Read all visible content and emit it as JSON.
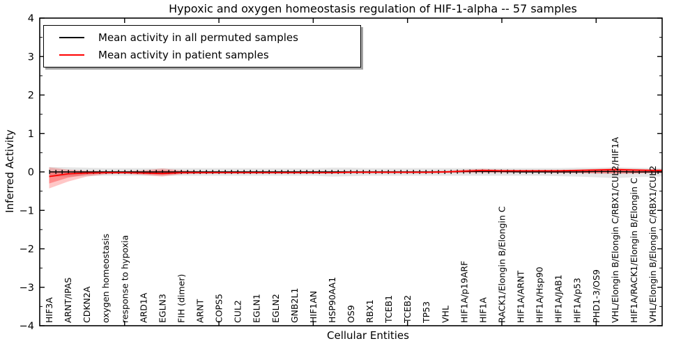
{
  "chart_data": {
    "type": "line",
    "title": "Hypoxic and oxygen homeostasis regulation of HIF-1-alpha -- 57 samples",
    "xlabel": "Cellular Entities",
    "ylabel": "Inferred Activity",
    "ylim": [
      -4,
      4
    ],
    "yticks": [
      -4,
      -3,
      -2,
      -1,
      0,
      1,
      2,
      3,
      4
    ],
    "y_minor_step": 0.5,
    "x_major_tick_first_index": 4,
    "x_major_tick_step": 5,
    "grid": false,
    "legend_position": "upper-left",
    "categories": [
      "HIF3A",
      "ARNT/IPAS",
      "CDKN2A",
      "oxygen homeostasis",
      "response to hypoxia",
      "ARD1A",
      "EGLN3",
      "FIH (dimer)",
      "ARNT",
      "COPS5",
      "CUL2",
      "EGLN1",
      "EGLN2",
      "GNB2L1",
      "HIF1AN",
      "HSP90AA1",
      "OS9",
      "RBX1",
      "TCEB1",
      "TCEB2",
      "TP53",
      "VHL",
      "HIF1A/p19ARF",
      "HIF1A",
      "RACK1/Elongin B/Elongin C",
      "HIF1A/ARNT",
      "HIF1A/Hsp90",
      "HIF1A/JAB1",
      "HIF1A/p53",
      "PHD1-3/OS9",
      "VHL/Elongin B/Elongin C/RBX1/CUL2/HIF1A",
      "HIF1A/RACK1/Elongin B/Elongin C",
      "VHL/Elongin B/Elongin C/RBX1/CUL2"
    ],
    "series": [
      {
        "name": "Mean activity in all permuted samples",
        "color": "#000000",
        "marker": "tick",
        "values": [
          0,
          0,
          0,
          0,
          0,
          0,
          0,
          0,
          0,
          0,
          0,
          0,
          0,
          0,
          0,
          0,
          0,
          0,
          0,
          0,
          0,
          0,
          0.01,
          0.01,
          0.01,
          0,
          0,
          0,
          0,
          0.01,
          0.01,
          0,
          0
        ]
      },
      {
        "name": "Mean activity in patient samples",
        "color": "#ff0000",
        "marker": "none",
        "values": [
          -0.12,
          -0.05,
          -0.03,
          -0.02,
          -0.02,
          -0.03,
          -0.04,
          -0.02,
          -0.02,
          -0.02,
          -0.02,
          -0.02,
          -0.02,
          -0.02,
          -0.02,
          -0.02,
          -0.01,
          -0.01,
          -0.01,
          -0.01,
          -0.01,
          0,
          0.02,
          0.04,
          0.03,
          0.03,
          0.03,
          0.03,
          0.04,
          0.05,
          0.06,
          0.05,
          0.04
        ]
      }
    ],
    "bands": [
      {
        "name": "permuted-samples-range",
        "color": "rgba(0,0,0,0.10)",
        "upper": [
          0.13,
          0.12,
          0.11,
          0.1,
          0.1,
          0.1,
          0.1,
          0.1,
          0.1,
          0.1,
          0.1,
          0.1,
          0.1,
          0.1,
          0.1,
          0.11,
          0.11,
          0.1,
          0.1,
          0.1,
          0.1,
          0.1,
          0.1,
          0.1,
          0.1,
          0.1,
          0.1,
          0.1,
          0.11,
          0.11,
          0.12,
          0.11,
          0.1
        ],
        "lower": [
          -0.13,
          -0.12,
          -0.11,
          -0.1,
          -0.1,
          -0.1,
          -0.1,
          -0.1,
          -0.1,
          -0.1,
          -0.1,
          -0.1,
          -0.1,
          -0.1,
          -0.1,
          -0.12,
          -0.11,
          -0.1,
          -0.1,
          -0.1,
          -0.1,
          -0.1,
          -0.1,
          -0.1,
          -0.1,
          -0.1,
          -0.1,
          -0.11,
          -0.12,
          -0.14,
          -0.16,
          -0.14,
          -0.12
        ]
      },
      {
        "name": "patient-samples-range-outer",
        "color": "rgba(255,0,0,0.22)",
        "upper": [
          0.12,
          0.06,
          0.03,
          0.02,
          0.02,
          0.04,
          0.09,
          0.04,
          0.02,
          0.02,
          0.02,
          0.02,
          0.02,
          0.02,
          0.02,
          0.02,
          0.02,
          0.02,
          0.02,
          0.02,
          0.02,
          0.03,
          0.06,
          0.08,
          0.06,
          0.05,
          0.05,
          0.05,
          0.06,
          0.08,
          0.1,
          0.08,
          0.07
        ],
        "lower": [
          -0.43,
          -0.25,
          -0.12,
          -0.06,
          -0.05,
          -0.08,
          -0.12,
          -0.06,
          -0.05,
          -0.04,
          -0.04,
          -0.04,
          -0.04,
          -0.04,
          -0.04,
          -0.04,
          -0.03,
          -0.03,
          -0.03,
          -0.03,
          -0.03,
          -0.03,
          -0.02,
          -0.02,
          -0.02,
          -0.02,
          -0.02,
          -0.03,
          -0.03,
          -0.04,
          -0.05,
          -0.04,
          -0.03
        ]
      },
      {
        "name": "patient-samples-range-inner",
        "color": "rgba(255,0,0,0.30)",
        "upper": [
          0.02,
          0.01,
          0.01,
          0.0,
          0.0,
          0.01,
          0.04,
          0.01,
          0.01,
          0.01,
          0.01,
          0.01,
          0.01,
          0.01,
          0.01,
          0.01,
          0.01,
          0.01,
          0.01,
          0.01,
          0.01,
          0.01,
          0.03,
          0.05,
          0.04,
          0.03,
          0.03,
          0.03,
          0.04,
          0.05,
          0.07,
          0.05,
          0.04
        ],
        "lower": [
          -0.3,
          -0.15,
          -0.07,
          -0.04,
          -0.03,
          -0.05,
          -0.08,
          -0.04,
          -0.03,
          -0.03,
          -0.03,
          -0.03,
          -0.03,
          -0.03,
          -0.03,
          -0.03,
          -0.02,
          -0.02,
          -0.02,
          -0.02,
          -0.02,
          -0.02,
          -0.01,
          -0.01,
          -0.01,
          -0.01,
          -0.01,
          -0.02,
          -0.02,
          -0.03,
          -0.03,
          -0.03,
          -0.02
        ]
      }
    ],
    "legend": [
      {
        "label": "Mean activity in all permuted samples",
        "color": "#000000"
      },
      {
        "label": "Mean activity in patient samples",
        "color": "#ff0000"
      }
    ]
  }
}
